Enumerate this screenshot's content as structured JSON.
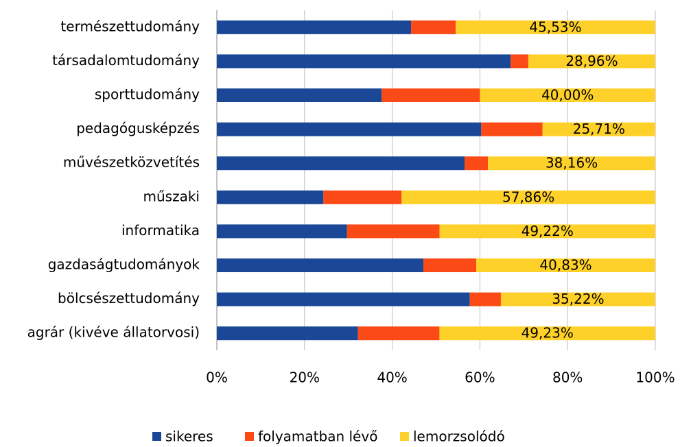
{
  "chart_data": {
    "type": "stacked_barh",
    "categories": [
      "természettudomány",
      "társadalomtudomány",
      "sporttudomány",
      "pedagógusképzés",
      "művészetközvetítés",
      "műszaki",
      "informatika",
      "gazdaságtudományok",
      "bölcsészettudomány",
      "agrár (kivéve állatorvosi)"
    ],
    "series": [
      {
        "name": "sikeres",
        "color": "#1a4896",
        "values": [
          44.3,
          67.0,
          37.6,
          60.3,
          56.5,
          24.3,
          29.7,
          47.1,
          57.7,
          32.2
        ]
      },
      {
        "name": "folyamatban lévő",
        "color": "#fb4a16",
        "values": [
          10.17,
          4.04,
          22.4,
          13.99,
          5.34,
          17.84,
          21.08,
          12.07,
          7.08,
          18.57
        ]
      },
      {
        "name": "lemorzsolódó",
        "color": "#fed12a",
        "values": [
          45.53,
          28.96,
          40.0,
          25.71,
          38.16,
          57.86,
          49.22,
          40.83,
          35.22,
          49.23
        ],
        "value_labels": [
          "45,53%",
          "28,96%",
          "40,00%",
          "25,71%",
          "38,16%",
          "57,86%",
          "49,22%",
          "40,83%",
          "35,22%",
          "49,23%"
        ]
      }
    ],
    "xlim": [
      0,
      100
    ],
    "xticks": [
      {
        "value": 0,
        "label": "0%"
      },
      {
        "value": 20,
        "label": "20%"
      },
      {
        "value": 40,
        "label": "40%"
      },
      {
        "value": 60,
        "label": "60%"
      },
      {
        "value": 80,
        "label": "80%"
      },
      {
        "value": 100,
        "label": "100%"
      }
    ],
    "grid": true,
    "legend": "bottom"
  }
}
